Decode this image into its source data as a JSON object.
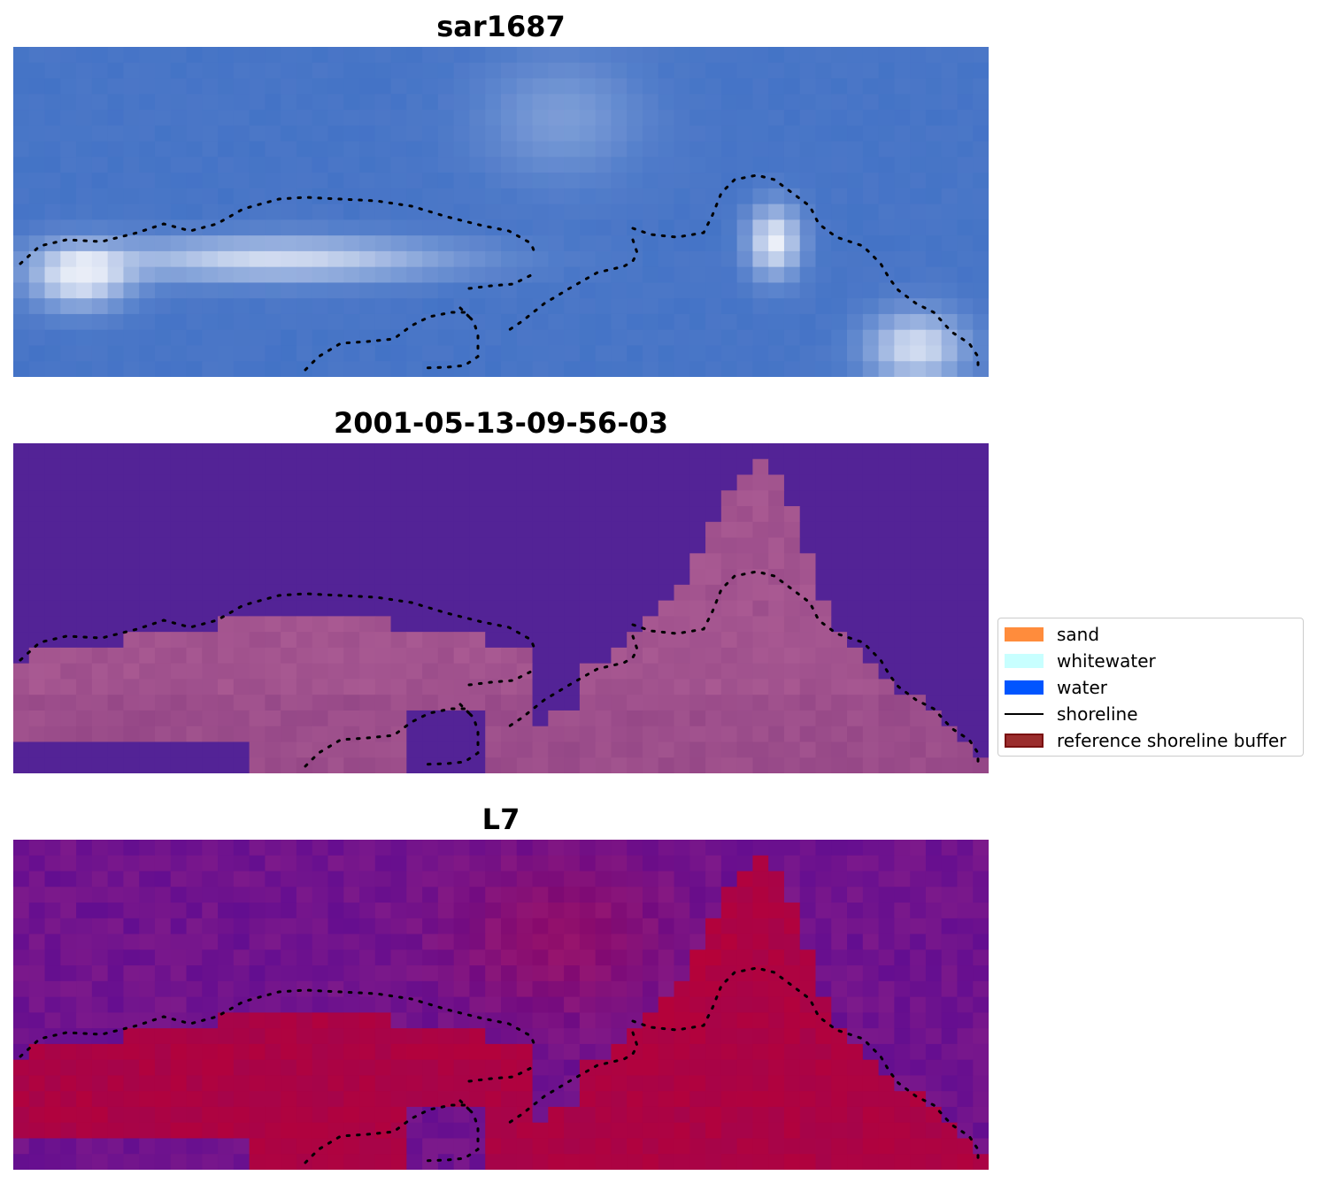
{
  "panels": [
    {
      "title": "sar1687",
      "style": "rgb"
    },
    {
      "title": "2001-05-13-09-56-03",
      "style": "classified"
    },
    {
      "title": "L7",
      "style": "index"
    }
  ],
  "legend": {
    "items": [
      {
        "label": "sand",
        "color": "#ff8c3c",
        "kind": "patch"
      },
      {
        "label": "whitewater",
        "color": "#c8ffff",
        "kind": "patch"
      },
      {
        "label": "water",
        "color": "#0055ff",
        "kind": "patch"
      },
      {
        "label": "shoreline",
        "color": "#000000",
        "kind": "line"
      },
      {
        "label": "reference shoreline buffer",
        "color": "#9b2d2d",
        "edge": "#7a1010",
        "kind": "patch"
      }
    ]
  },
  "colors": {
    "classified_water": "#532396",
    "classified_land": "#8c3f82",
    "rgb_base": "#4a78c8",
    "rgb_bright": "#f2f4fa",
    "index_low": "#5a0f9a",
    "index_high": "#c0002e",
    "shoreline": "#000000"
  }
}
